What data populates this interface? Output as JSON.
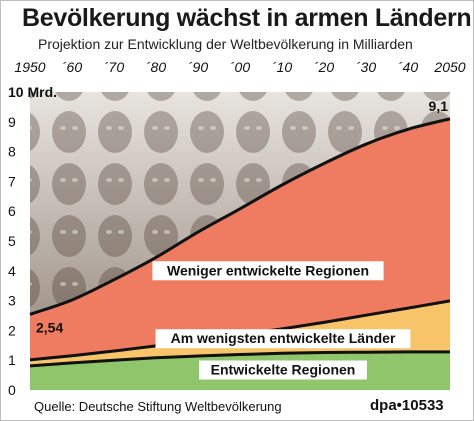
{
  "header": {
    "title": "Bevölkerung wächst in armen Ländern",
    "subtitle": "Projektion zur Entwicklung der Weltbevölkerung in Milliarden"
  },
  "footer": {
    "source": "Quelle: Deutsche Stiftung Weltbevölkerung",
    "credit": "dpa•10533"
  },
  "colors": {
    "developed": "#8fc56b",
    "least_developed": "#f7c46a",
    "less_developed": "#ef7c61",
    "line": "#111111",
    "photo_top": "#e8e4df",
    "photo_bottom": "#8b7d71"
  },
  "chart_data": {
    "type": "area",
    "title": "Bevölkerung wächst in armen Ländern",
    "subtitle": "Projektion zur Entwicklung der Weltbevölkerung in Milliarden",
    "x": [
      1950,
      1960,
      1970,
      1980,
      1990,
      2000,
      2010,
      2020,
      2030,
      2040,
      2050
    ],
    "x_tick_labels": [
      "1950",
      "´60",
      "´70",
      "´80",
      "´90",
      "´00",
      "´10",
      "´20",
      "´30",
      "´40",
      "2050"
    ],
    "y_tick_labels": [
      "0",
      "1",
      "2",
      "3",
      "4",
      "5",
      "6",
      "7",
      "8",
      "9",
      "10 Mrd."
    ],
    "ylim": [
      0,
      10
    ],
    "grid": false,
    "series": [
      {
        "name": "Entwickelte Regionen",
        "values": [
          0.81,
          0.91,
          1.0,
          1.08,
          1.14,
          1.19,
          1.23,
          1.26,
          1.27,
          1.28,
          1.28
        ]
      },
      {
        "name": "Am wenigsten entwickelte Länder",
        "values": [
          1.01,
          1.15,
          1.31,
          1.48,
          1.67,
          1.85,
          2.05,
          2.27,
          2.51,
          2.75,
          2.99
        ]
      },
      {
        "name": "Weniger entwickelte Regionen",
        "values": [
          2.54,
          3.02,
          3.7,
          4.45,
          5.3,
          6.08,
          6.88,
          7.6,
          8.25,
          8.75,
          9.1
        ]
      }
    ],
    "annotations": [
      {
        "text": "2,54",
        "x": 1950,
        "y": 2.54
      },
      {
        "text": "9,1",
        "x": 2050,
        "y": 9.1
      }
    ]
  }
}
